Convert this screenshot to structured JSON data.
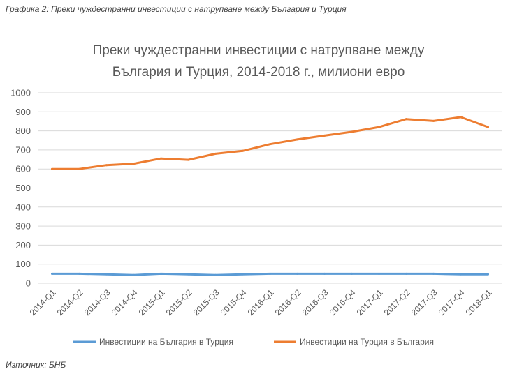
{
  "caption": "Графика 2: Преки чуждестранни инвестиции с натрупване между България и Турция",
  "source": "Източник: БНБ",
  "chart_data": {
    "type": "line",
    "title_lines": [
      "Преки чуждестранни инвестиции с натрупване между",
      "България и Турция, 2014-2018 г., милиони евро"
    ],
    "categories": [
      "2014-Q1",
      "2014-Q2",
      "2014-Q3",
      "2014-Q4",
      "2015-Q1",
      "2015-Q2",
      "2015-Q3",
      "2015-Q4",
      "2016-Q1",
      "2016-Q2",
      "2016-Q3",
      "2016-Q4",
      "2017-Q1",
      "2017-Q2",
      "2017-Q3",
      "2017-Q4",
      "2018-Q1"
    ],
    "ylim": [
      0,
      1000
    ],
    "yticks": [
      "0",
      "100",
      "200",
      "300",
      "400",
      "500",
      "600",
      "700",
      "800",
      "900",
      "1000"
    ],
    "grid": true,
    "legend_position": "bottom",
    "series": [
      {
        "name": "Инвестиции на България в Турция",
        "color": "#5B9BD5",
        "values": [
          50,
          50,
          47,
          43,
          50,
          47,
          43,
          47,
          50,
          50,
          50,
          50,
          50,
          50,
          50,
          47,
          47
        ]
      },
      {
        "name": "Инвестиции на Турция в България",
        "color": "#ED7D31",
        "values": [
          600,
          600,
          620,
          628,
          655,
          648,
          680,
          695,
          730,
          755,
          775,
          795,
          820,
          862,
          852,
          872,
          820
        ]
      }
    ]
  }
}
